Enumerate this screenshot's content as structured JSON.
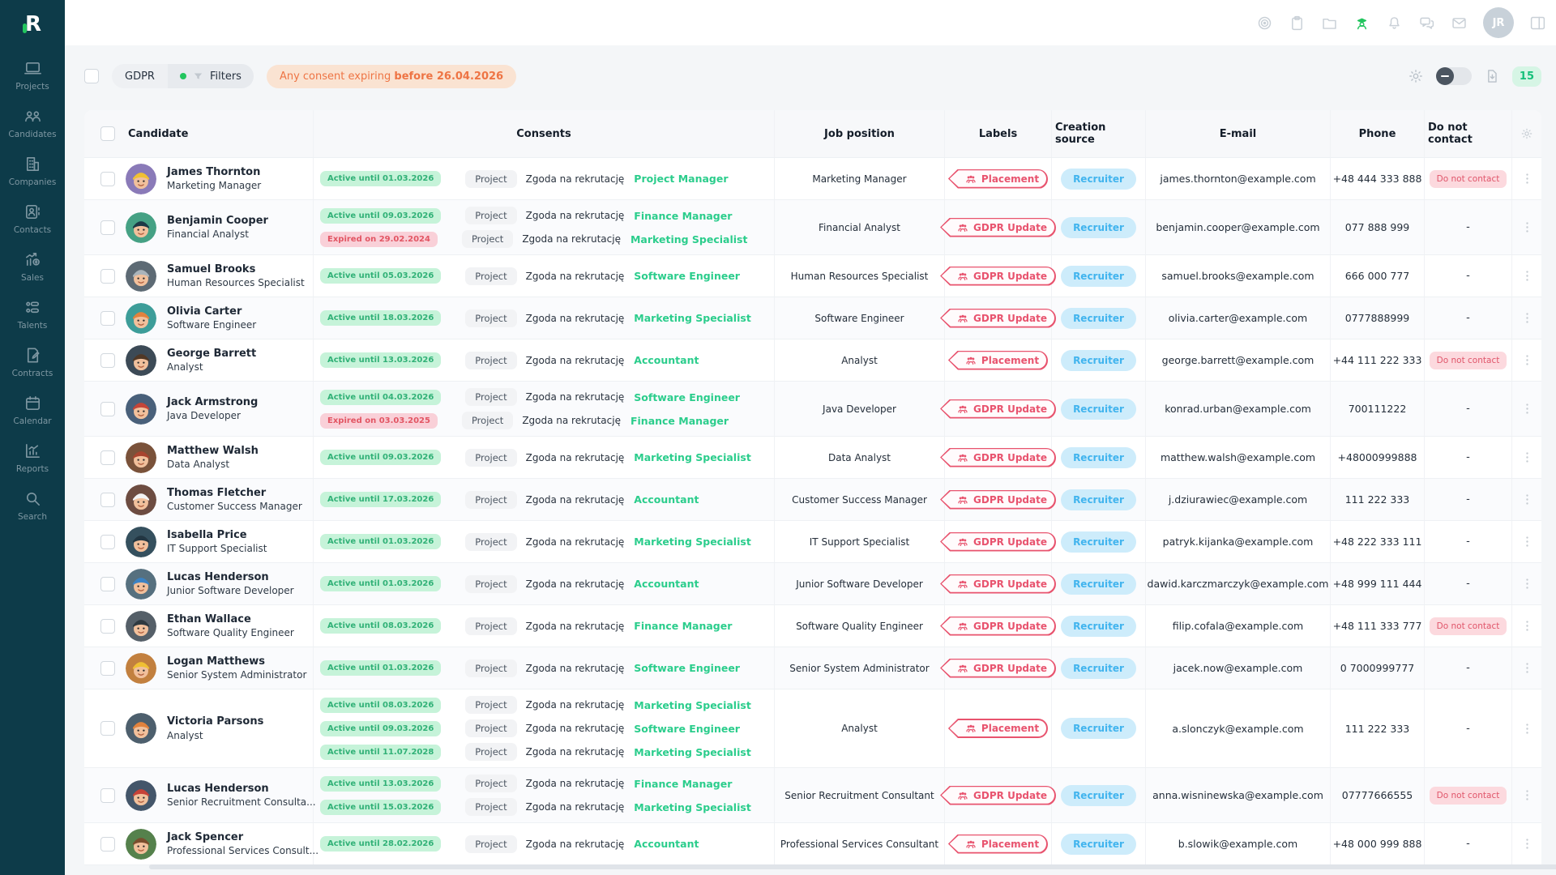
{
  "sidebar": {
    "items": [
      {
        "label": "Projects",
        "icon": "projects"
      },
      {
        "label": "Candidates",
        "icon": "candidates"
      },
      {
        "label": "Companies",
        "icon": "companies"
      },
      {
        "label": "Contacts",
        "icon": "contacts"
      },
      {
        "label": "Sales",
        "icon": "sales"
      },
      {
        "label": "Talents",
        "icon": "talents"
      },
      {
        "label": "Contracts",
        "icon": "contracts"
      },
      {
        "label": "Calendar",
        "icon": "calendar"
      },
      {
        "label": "Reports",
        "icon": "reports"
      },
      {
        "label": "Search",
        "icon": "search"
      }
    ]
  },
  "topbar": {
    "icons": [
      {
        "name": "target",
        "active": false
      },
      {
        "name": "clipboard",
        "active": false
      },
      {
        "name": "folder",
        "active": false
      },
      {
        "name": "gdpr-officer",
        "active": true
      },
      {
        "name": "bell",
        "active": false
      },
      {
        "name": "chat",
        "active": false
      },
      {
        "name": "mail",
        "active": false
      }
    ],
    "avatar_initials": "JR",
    "trailing_icon": "panel"
  },
  "filterbar": {
    "gdpr_label": "GDPR",
    "filters_label": "Filters",
    "alert_prefix": "Any consent expiring ",
    "alert_bold": "before 26.04.2026",
    "count": "15",
    "toggle_state": "off"
  },
  "colors": {
    "accent_green": "#22c55e",
    "active_pill": "#c6f3d9",
    "expired_pill": "#f9d0d8",
    "label_red": "#e8536e",
    "source_blue": "#41b4ee",
    "alert_orange": "#ee7444",
    "sidebar_teal": "#0d3b49"
  },
  "table": {
    "columns": [
      "Candidate",
      "Consents",
      "Job position",
      "Labels",
      "Creation source",
      "E-mail",
      "Phone",
      "Do not contact"
    ],
    "rows": [
      {
        "name": "James Thornton",
        "role": "Marketing Manager",
        "avatar": {
          "bg": "#8a7ab8",
          "hat": "#f0c033"
        },
        "consents": [
          {
            "state": "active",
            "status": "Active until 01.03.2026",
            "scope": "Project",
            "text": "Zgoda na rekrutację",
            "position": "Project Manager"
          }
        ],
        "job": "Marketing Manager",
        "label": "Placement",
        "source": "Recruiter",
        "email": "james.thornton@example.com",
        "phone": "+48 444 333 888",
        "do_not_contact": "Do not contact"
      },
      {
        "name": "Benjamin Cooper",
        "role": "Financial Analyst",
        "avatar": {
          "bg": "#45a184",
          "hat": "#1d3a46"
        },
        "consents": [
          {
            "state": "active",
            "status": "Active until 09.03.2026",
            "scope": "Project",
            "text": "Zgoda na rekrutację",
            "position": "Finance Manager"
          },
          {
            "state": "expired",
            "status": "Expired on 29.02.2024",
            "scope": "Project",
            "text": "Zgoda na rekrutację",
            "position": "Marketing Specialist"
          }
        ],
        "job": "Financial Analyst",
        "label": "GDPR Update",
        "source": "Recruiter",
        "email": "benjamin.cooper@example.com",
        "phone": "077 888 999",
        "do_not_contact": "-"
      },
      {
        "name": "Samuel Brooks",
        "role": "Human Resources Specialist",
        "avatar": {
          "bg": "#5d6a74",
          "hat": "#aab4bb"
        },
        "consents": [
          {
            "state": "active",
            "status": "Active until 05.03.2026",
            "scope": "Project",
            "text": "Zgoda na rekrutację",
            "position": "Software Engineer"
          }
        ],
        "job": "Human Resources Specialist",
        "label": "GDPR Update",
        "source": "Recruiter",
        "email": "samuel.brooks@example.com",
        "phone": "666 000 777",
        "do_not_contact": "-"
      },
      {
        "name": "Olivia Carter",
        "role": "Software Engineer",
        "avatar": {
          "bg": "#3d9d99",
          "hat": "#e2823d"
        },
        "consents": [
          {
            "state": "active",
            "status": "Active until 18.03.2026",
            "scope": "Project",
            "text": "Zgoda na rekrutację",
            "position": "Marketing Specialist"
          }
        ],
        "job": "Software Engineer",
        "label": "GDPR Update",
        "source": "Recruiter",
        "email": "olivia.carter@example.com",
        "phone": "0777888999",
        "do_not_contact": "-"
      },
      {
        "name": "George Barrett",
        "role": "Analyst",
        "avatar": {
          "bg": "#3c4a56",
          "hat": "#503826"
        },
        "consents": [
          {
            "state": "active",
            "status": "Active until 13.03.2026",
            "scope": "Project",
            "text": "Zgoda na rekrutację",
            "position": "Accountant"
          }
        ],
        "job": "Analyst",
        "label": "Placement",
        "source": "Recruiter",
        "email": "george.barrett@example.com",
        "phone": "+44 111 222 333",
        "do_not_contact": "Do not contact"
      },
      {
        "name": "Jack Armstrong",
        "role": "Java Developer",
        "avatar": {
          "bg": "#49607a",
          "hat": "#c44538"
        },
        "consents": [
          {
            "state": "active",
            "status": "Active until 04.03.2026",
            "scope": "Project",
            "text": "Zgoda na rekrutację",
            "position": "Software Engineer"
          },
          {
            "state": "expired",
            "status": "Expired on 03.03.2025",
            "scope": "Project",
            "text": "Zgoda na rekrutację",
            "position": "Finance Manager"
          }
        ],
        "job": "Java Developer",
        "label": "GDPR Update",
        "source": "Recruiter",
        "email": "konrad.urban@example.com",
        "phone": "700111222",
        "do_not_contact": "-"
      },
      {
        "name": "Matthew Walsh",
        "role": "Data Analyst",
        "avatar": {
          "bg": "#7a523a",
          "hat": "#a8442f"
        },
        "consents": [
          {
            "state": "active",
            "status": "Active until 09.03.2026",
            "scope": "Project",
            "text": "Zgoda na rekrutację",
            "position": "Marketing Specialist"
          }
        ],
        "job": "Data Analyst",
        "label": "GDPR Update",
        "source": "Recruiter",
        "email": "matthew.walsh@example.com",
        "phone": "+48000999888",
        "do_not_contact": "-"
      },
      {
        "name": "Thomas Fletcher",
        "role": "Customer Success Manager",
        "avatar": {
          "bg": "#6d4c41",
          "hat": "#f2f3f4"
        },
        "consents": [
          {
            "state": "active",
            "status": "Active until 17.03.2026",
            "scope": "Project",
            "text": "Zgoda na rekrutację",
            "position": "Accountant"
          }
        ],
        "job": "Customer Success Manager",
        "label": "GDPR Update",
        "source": "Recruiter",
        "email": "j.dziurawiec@example.com",
        "phone": "111 222 333",
        "do_not_contact": "-"
      },
      {
        "name": "Isabella Price",
        "role": "IT Support Specialist",
        "avatar": {
          "bg": "#35505e",
          "hat": "#233642"
        },
        "consents": [
          {
            "state": "active",
            "status": "Active until 01.03.2026",
            "scope": "Project",
            "text": "Zgoda na rekrutację",
            "position": "Marketing Specialist"
          }
        ],
        "job": "IT Support Specialist",
        "label": "GDPR Update",
        "source": "Recruiter",
        "email": "patryk.kijanka@example.com",
        "phone": "+48 222 333 111",
        "do_not_contact": "-"
      },
      {
        "name": "Lucas Henderson",
        "role": "Junior Software Developer",
        "avatar": {
          "bg": "#56707f",
          "hat": "#3b82c4"
        },
        "consents": [
          {
            "state": "active",
            "status": "Active until 01.03.2026",
            "scope": "Project",
            "text": "Zgoda na rekrutację",
            "position": "Accountant"
          }
        ],
        "job": "Junior Software Developer",
        "label": "GDPR Update",
        "source": "Recruiter",
        "email": "dawid.karczmarczyk@example.com",
        "phone": "+48 999 111 444",
        "do_not_contact": "-"
      },
      {
        "name": "Ethan Wallace",
        "role": "Software Quality Engineer",
        "avatar": {
          "bg": "#555f68",
          "hat": "#2e3940"
        },
        "consents": [
          {
            "state": "active",
            "status": "Active until 08.03.2026",
            "scope": "Project",
            "text": "Zgoda na rekrutację",
            "position": "Finance Manager"
          }
        ],
        "job": "Software Quality Engineer",
        "label": "GDPR Update",
        "source": "Recruiter",
        "email": "filip.cofala@example.com",
        "phone": "+48 111 333 777",
        "do_not_contact": "Do not contact"
      },
      {
        "name": "Logan Matthews",
        "role": "Senior System Administrator",
        "avatar": {
          "bg": "#c2803f",
          "hat": "#f0c033"
        },
        "consents": [
          {
            "state": "active",
            "status": "Active until 01.03.2026",
            "scope": "Project",
            "text": "Zgoda na rekrutację",
            "position": "Software Engineer"
          }
        ],
        "job": "Senior System Administrator",
        "label": "GDPR Update",
        "source": "Recruiter",
        "email": "jacek.now@example.com",
        "phone": "0 7000999777",
        "do_not_contact": "-"
      },
      {
        "name": "Victoria Parsons",
        "role": "Analyst",
        "avatar": {
          "bg": "#4d5f6d",
          "hat": "#e2823d"
        },
        "consents": [
          {
            "state": "active",
            "status": "Active until 08.03.2026",
            "scope": "Project",
            "text": "Zgoda na rekrutację",
            "position": "Marketing Specialist"
          },
          {
            "state": "active",
            "status": "Active until 09.03.2026",
            "scope": "Project",
            "text": "Zgoda na rekrutację",
            "position": "Software Engineer"
          },
          {
            "state": "active",
            "status": "Active until 11.07.2028",
            "scope": "Project",
            "text": "Zgoda na rekrutację",
            "position": "Marketing Specialist"
          }
        ],
        "job": "Analyst",
        "label": "Placement",
        "source": "Recruiter",
        "email": "a.slonczyk@example.com",
        "phone": "111 222 333",
        "do_not_contact": "-"
      },
      {
        "name": "Lucas Henderson",
        "role": "Senior Recruitment Consulta...",
        "avatar": {
          "bg": "#44566a",
          "hat": "#c64238"
        },
        "consents": [
          {
            "state": "active",
            "status": "Active until 13.03.2026",
            "scope": "Project",
            "text": "Zgoda na rekrutację",
            "position": "Finance Manager"
          },
          {
            "state": "active",
            "status": "Active until 15.03.2026",
            "scope": "Project",
            "text": "Zgoda na rekrutację",
            "position": "Marketing Specialist"
          }
        ],
        "job": "Senior Recruitment Consultant",
        "label": "GDPR Update",
        "source": "Recruiter",
        "email": "anna.wisninewska@example.com",
        "phone": "07777666555",
        "do_not_contact": "Do not contact"
      },
      {
        "name": "Jack Spencer",
        "role": "Professional Services Consult...",
        "avatar": {
          "bg": "#55814c",
          "hat": "#7a4e2e"
        },
        "consents": [
          {
            "state": "active",
            "status": "Active until 28.02.2026",
            "scope": "Project",
            "text": "Zgoda na rekrutację",
            "position": "Accountant"
          }
        ],
        "job": "Professional Services Consultant",
        "label": "Placement",
        "source": "Recruiter",
        "email": "b.slowik@example.com",
        "phone": "+48 000 999 888",
        "do_not_contact": "-"
      }
    ]
  }
}
